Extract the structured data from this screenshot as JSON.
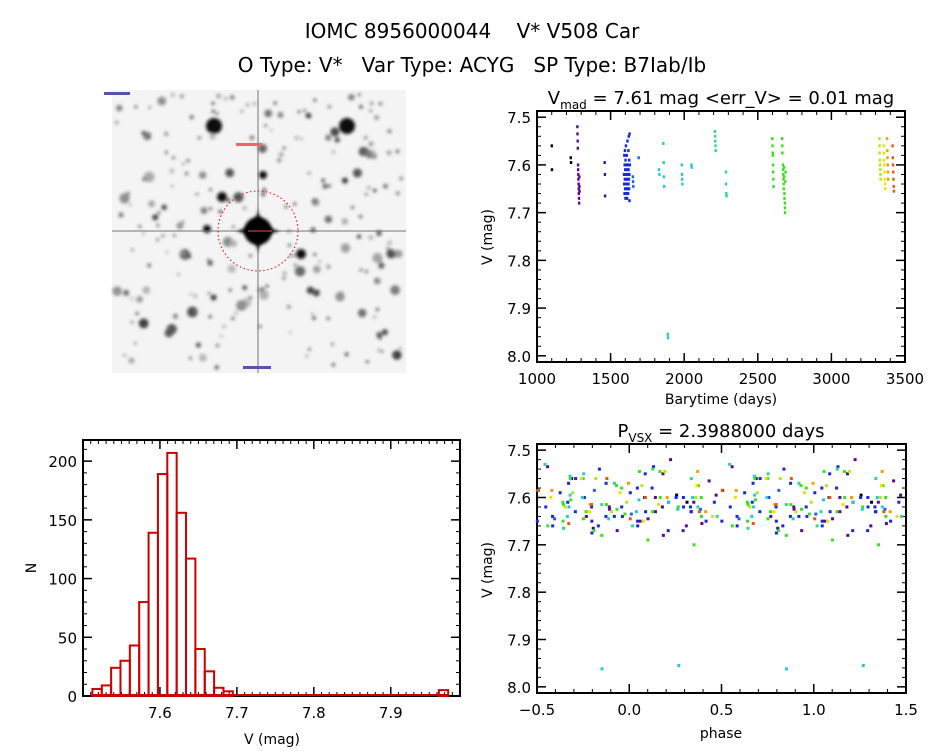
{
  "header": {
    "line1": "IOMC 8956000044    V* V508 Car",
    "line2": "O Type: V*   Var Type: ACYG   SP Type: B7Iab/Ib"
  },
  "chart_data": [
    {
      "id": "finder-image",
      "type": "image",
      "description_marks": "grayscale star field with red dotted circle around central target"
    },
    {
      "id": "light-curve",
      "type": "scatter",
      "title_main": "V",
      "title_sub": "mad",
      "title_rest": " = 7.61 mag <err_V> = 0.01 mag",
      "xlabel": "Barytime (days)",
      "ylabel": "V (mag)",
      "xlim": [
        1000,
        3500
      ],
      "ylim": [
        8.013,
        7.487
      ],
      "xticks": [
        1000,
        1500,
        2000,
        2500,
        3000,
        3500
      ],
      "yticks": [
        7.5,
        7.6,
        7.7,
        7.8,
        7.9,
        8.0
      ],
      "ytick_labels": [
        "7.5",
        "7.6",
        "7.7",
        "7.8",
        "7.9",
        "8.0"
      ],
      "series": [
        {
          "color": "#000000",
          "points": [
            [
              1100.3,
              7.56
            ],
            [
              1101.8,
              7.61
            ],
            [
              1229.4,
              7.585
            ],
            [
              1231.2,
              7.595
            ]
          ]
        },
        {
          "color": "#5a0a8c",
          "points": [
            [
              1274.3,
              7.52
            ],
            [
              1275.1,
              7.535
            ],
            [
              1276.6,
              7.55
            ],
            [
              1277.2,
              7.565
            ],
            [
              1278.9,
              7.6
            ],
            [
              1279.4,
              7.61
            ],
            [
              1280.7,
              7.62
            ],
            [
              1281.3,
              7.63
            ],
            [
              1282.8,
              7.64
            ],
            [
              1283.5,
              7.65
            ],
            [
              1284.1,
              7.66
            ],
            [
              1285.6,
              7.67
            ],
            [
              1286.2,
              7.68
            ],
            [
              1287.9,
              7.625
            ],
            [
              1288.4,
              7.645
            ],
            [
              1289.1,
              7.655
            ]
          ]
        },
        {
          "color": "#2a1a8c",
          "points": [
            [
              1459.6,
              7.595
            ],
            [
              1461.3,
              7.62
            ],
            [
              1462.8,
              7.665
            ]
          ]
        },
        {
          "color": "#1428dc",
          "points": [
            [
              1591.2,
              7.62
            ],
            [
              1592.5,
              7.64
            ],
            [
              1593.1,
              7.58
            ],
            [
              1594.8,
              7.66
            ],
            [
              1595.4,
              7.6
            ],
            [
              1596.9,
              7.63
            ],
            [
              1597.3,
              7.57
            ],
            [
              1598.6,
              7.65
            ],
            [
              1599.2,
              7.61
            ],
            [
              1600.7,
              7.67
            ],
            [
              1601.5,
              7.59
            ],
            [
              1602.3,
              7.62
            ],
            [
              1603.8,
              7.64
            ],
            [
              1604.1,
              7.56
            ],
            [
              1605.6,
              7.63
            ],
            [
              1606.2,
              7.66
            ],
            [
              1607.9,
              7.6
            ],
            [
              1608.4,
              7.65
            ],
            [
              1609.7,
              7.58
            ],
            [
              1610.3,
              7.62
            ],
            [
              1611.8,
              7.64
            ],
            [
              1612.5,
              7.67
            ],
            [
              1613.1,
              7.61
            ],
            [
              1614.6,
              7.55
            ],
            [
              1615.2,
              7.63
            ],
            [
              1616.9,
              7.65
            ],
            [
              1617.4,
              7.6
            ],
            [
              1618.7,
              7.62
            ],
            [
              1619.3,
              7.66
            ],
            [
              1620.8,
              7.57
            ],
            [
              1621.5,
              7.64
            ],
            [
              1622.1,
              7.61
            ],
            [
              1623.6,
              7.54
            ],
            [
              1624.2,
              7.63
            ],
            [
              1625.9,
              7.65
            ],
            [
              1626.4,
              7.59
            ],
            [
              1627.7,
              7.62
            ],
            [
              1628.3,
              7.675
            ],
            [
              1629.1,
              7.535
            ],
            [
              1630.6,
              7.6
            ]
          ]
        },
        {
          "color": "#1e64dc",
          "points": [
            [
              1651.3,
              7.625
            ],
            [
              1652.8,
              7.635
            ],
            [
              1654.2,
              7.645
            ],
            [
              1690.7,
              7.585
            ]
          ]
        },
        {
          "color": "#28c8dc",
          "points": [
            [
              1828.4,
              7.61
            ],
            [
              1831.9,
              7.62
            ],
            [
              1858.3,
              7.555
            ],
            [
              1860.7,
              7.595
            ],
            [
              1862.1,
              7.625
            ],
            [
              1863.6,
              7.645
            ],
            [
              1888.5,
              7.955
            ],
            [
              1889.9,
              7.962
            ],
            [
              1983.2,
              7.6
            ],
            [
              1984.7,
              7.62
            ],
            [
              1986.3,
              7.63
            ],
            [
              1987.8,
              7.64
            ],
            [
              2049.4,
              7.6
            ],
            [
              2051.1,
              7.605
            ]
          ]
        },
        {
          "color": "#30d890",
          "points": [
            [
              2208.2,
              7.53
            ],
            [
              2209.6,
              7.54
            ],
            [
              2211.1,
              7.55
            ],
            [
              2212.5,
              7.56
            ],
            [
              2213.9,
              7.57
            ],
            [
              2283.3,
              7.615
            ],
            [
              2284.8,
              7.64
            ],
            [
              2286.1,
              7.66
            ],
            [
              2287.6,
              7.665
            ]
          ]
        },
        {
          "color": "#3ce020",
          "points": [
            [
              2598.3,
              7.545
            ],
            [
              2599.7,
              7.56
            ],
            [
              2601.2,
              7.575
            ],
            [
              2602.6,
              7.58
            ],
            [
              2603.1,
              7.6
            ],
            [
              2604.8,
              7.615
            ],
            [
              2605.4,
              7.63
            ],
            [
              2606.9,
              7.645
            ],
            [
              2665.2,
              7.545
            ],
            [
              2666.7,
              7.56
            ],
            [
              2667.3,
              7.575
            ],
            [
              2670.8,
              7.6
            ],
            [
              2671.4,
              7.61
            ],
            [
              2672.9,
              7.62
            ],
            [
              2674.1,
              7.63
            ],
            [
              2675.6,
              7.64
            ],
            [
              2676.2,
              7.65
            ],
            [
              2678.7,
              7.605
            ],
            [
              2679.3,
              7.625
            ],
            [
              2680.8,
              7.66
            ],
            [
              2681.4,
              7.67
            ],
            [
              2683.9,
              7.68
            ],
            [
              2684.5,
              7.69
            ],
            [
              2685.1,
              7.7
            ],
            [
              2686.6,
              7.635
            ],
            [
              2688.2,
              7.615
            ]
          ]
        },
        {
          "color": "#b4e81a",
          "points": [
            [
              3325.2,
              7.545
            ],
            [
              3326.7,
              7.56
            ],
            [
              3327.3,
              7.575
            ],
            [
              3328.8,
              7.59
            ],
            [
              3330.4,
              7.6
            ],
            [
              3331.9,
              7.61
            ],
            [
              3333.5,
              7.62
            ],
            [
              3334.1,
              7.63
            ]
          ]
        },
        {
          "color": "#f0e000",
          "points": [
            [
              3355.3,
              7.56
            ],
            [
              3356.8,
              7.575
            ],
            [
              3358.2,
              7.59
            ],
            [
              3359.7,
              7.6
            ],
            [
              3361.1,
              7.615
            ],
            [
              3362.6,
              7.63
            ],
            [
              3364.2,
              7.64
            ],
            [
              3365.7,
              7.65
            ]
          ]
        },
        {
          "color": "#f0a000",
          "points": [
            [
              3378.4,
              7.545
            ],
            [
              3379.9,
              7.57
            ],
            [
              3381.3,
              7.585
            ],
            [
              3382.8,
              7.6
            ],
            [
              3384.2,
              7.615
            ],
            [
              3385.7,
              7.63
            ]
          ]
        },
        {
          "color": "#e05a10",
          "points": [
            [
              3415.6,
              7.56
            ],
            [
              3417.1,
              7.585
            ],
            [
              3418.5,
              7.6
            ],
            [
              3420.2,
              7.615
            ],
            [
              3421.6,
              7.63
            ],
            [
              3423.1,
              7.645
            ],
            [
              3424.7,
              7.655
            ]
          ]
        }
      ]
    },
    {
      "id": "histogram",
      "type": "bar",
      "xlabel": "V (mag)",
      "ylabel": "N",
      "xlim": [
        7.5,
        7.99
      ],
      "ylim": [
        0,
        218
      ],
      "xticks": [
        7.6,
        7.7,
        7.8,
        7.9
      ],
      "yticks": [
        0,
        50,
        100,
        150,
        200
      ],
      "bar_color": "#cc0000",
      "bin_start": 7.5122,
      "bin_width": 0.01217,
      "counts": [
        6,
        9,
        24,
        30,
        43,
        80,
        139,
        189,
        207,
        156,
        117,
        40,
        21,
        7,
        4,
        0,
        0,
        0,
        0,
        0,
        0,
        0,
        0,
        0,
        0,
        0,
        0,
        0,
        0,
        0,
        0,
        0,
        0,
        0,
        0,
        0,
        0,
        5
      ]
    },
    {
      "id": "phased-curve",
      "type": "scatter",
      "title_main": "P",
      "title_sub": "VSX",
      "title_rest": " = 2.3988000 days",
      "period_days": 2.3988,
      "xlabel": "phase",
      "ylabel": "V (mag)",
      "xlim": [
        -0.5,
        1.5
      ],
      "ylim": [
        8.013,
        7.487
      ],
      "xticks": [
        -0.5,
        0.0,
        0.5,
        1.0,
        1.5
      ],
      "xtick_labels": [
        "−0.5",
        "0.0",
        "0.5",
        "1.0",
        "1.5"
      ],
      "yticks": [
        7.5,
        7.6,
        7.7,
        7.8,
        7.9,
        8.0
      ],
      "ytick_labels": [
        "7.5",
        "7.6",
        "7.7",
        "7.8",
        "7.9",
        "8.0"
      ],
      "points_source": "light-curve"
    }
  ]
}
